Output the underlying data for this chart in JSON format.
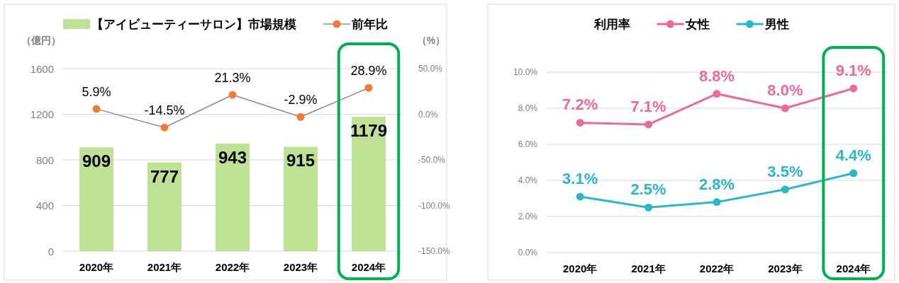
{
  "chart_data": [
    {
      "type": "bar",
      "categories": [
        "2020年",
        "2021年",
        "2022年",
        "2023年",
        "2024年"
      ],
      "ylabel": "（億円）",
      "y2label": "（%）",
      "ylim": [
        0,
        1600
      ],
      "yticks": [
        0,
        400,
        800,
        1200,
        1600
      ],
      "y2lim": [
        -150,
        50
      ],
      "y2ticks": [
        {
          "value": -150,
          "label": "-150.0%"
        },
        {
          "value": -100,
          "label": "-100.0%"
        },
        {
          "value": -50,
          "label": "-50.0%"
        },
        {
          "value": 0,
          "label": "0.0%"
        },
        {
          "value": 50,
          "label": "50.0%"
        }
      ],
      "grid": "y",
      "legend": "top",
      "marker": "circle",
      "series": [
        {
          "name": "【アイビューティーサロン】市場規模",
          "color": "#bfe196",
          "values": [
            909,
            777,
            943,
            915,
            1179
          ],
          "value_labels": [
            "909",
            "777",
            "943",
            "915",
            "1179"
          ]
        },
        {
          "name": "前年比",
          "type": "line",
          "axis": "y2",
          "color": "#8c8c8c",
          "colors": [
            "#ed7d31",
            "#ed7d31",
            "#ed7d31",
            "#ed7d31",
            "#ed7d31"
          ],
          "values": [
            5.9,
            -14.5,
            21.3,
            -2.9,
            28.9
          ],
          "value_labels": [
            "5.9%",
            "-14.5%",
            "21.3%",
            "-2.9%",
            "28.9%"
          ]
        }
      ]
    },
    {
      "type": "line",
      "categories": [
        "2020年",
        "2021年",
        "2022年",
        "2023年",
        "2024年"
      ],
      "legend_title": "利用率",
      "ylim": [
        0,
        10
      ],
      "yticks": [
        {
          "value": 0,
          "label": "0.0%"
        },
        {
          "value": 2,
          "label": "2.0%"
        },
        {
          "value": 4,
          "label": "4.0%"
        },
        {
          "value": 6,
          "label": "6.0%"
        },
        {
          "value": 8,
          "label": "8.0%"
        },
        {
          "value": 10,
          "label": "10.0%"
        }
      ],
      "grid": "y",
      "legend": "top",
      "marker": "circle",
      "series": [
        {
          "name": "女性",
          "color": "#ea6b9a",
          "values": [
            7.2,
            7.1,
            8.8,
            8.0,
            9.1
          ],
          "value_labels": [
            "7.2%",
            "7.1%",
            "8.8%",
            "8.0%",
            "9.1%"
          ]
        },
        {
          "name": "男性",
          "color": "#2cb7c9",
          "values": [
            3.1,
            2.5,
            2.8,
            3.5,
            4.4
          ],
          "value_labels": [
            "3.1%",
            "2.5%",
            "2.8%",
            "3.5%",
            "4.4%"
          ]
        }
      ]
    }
  ]
}
